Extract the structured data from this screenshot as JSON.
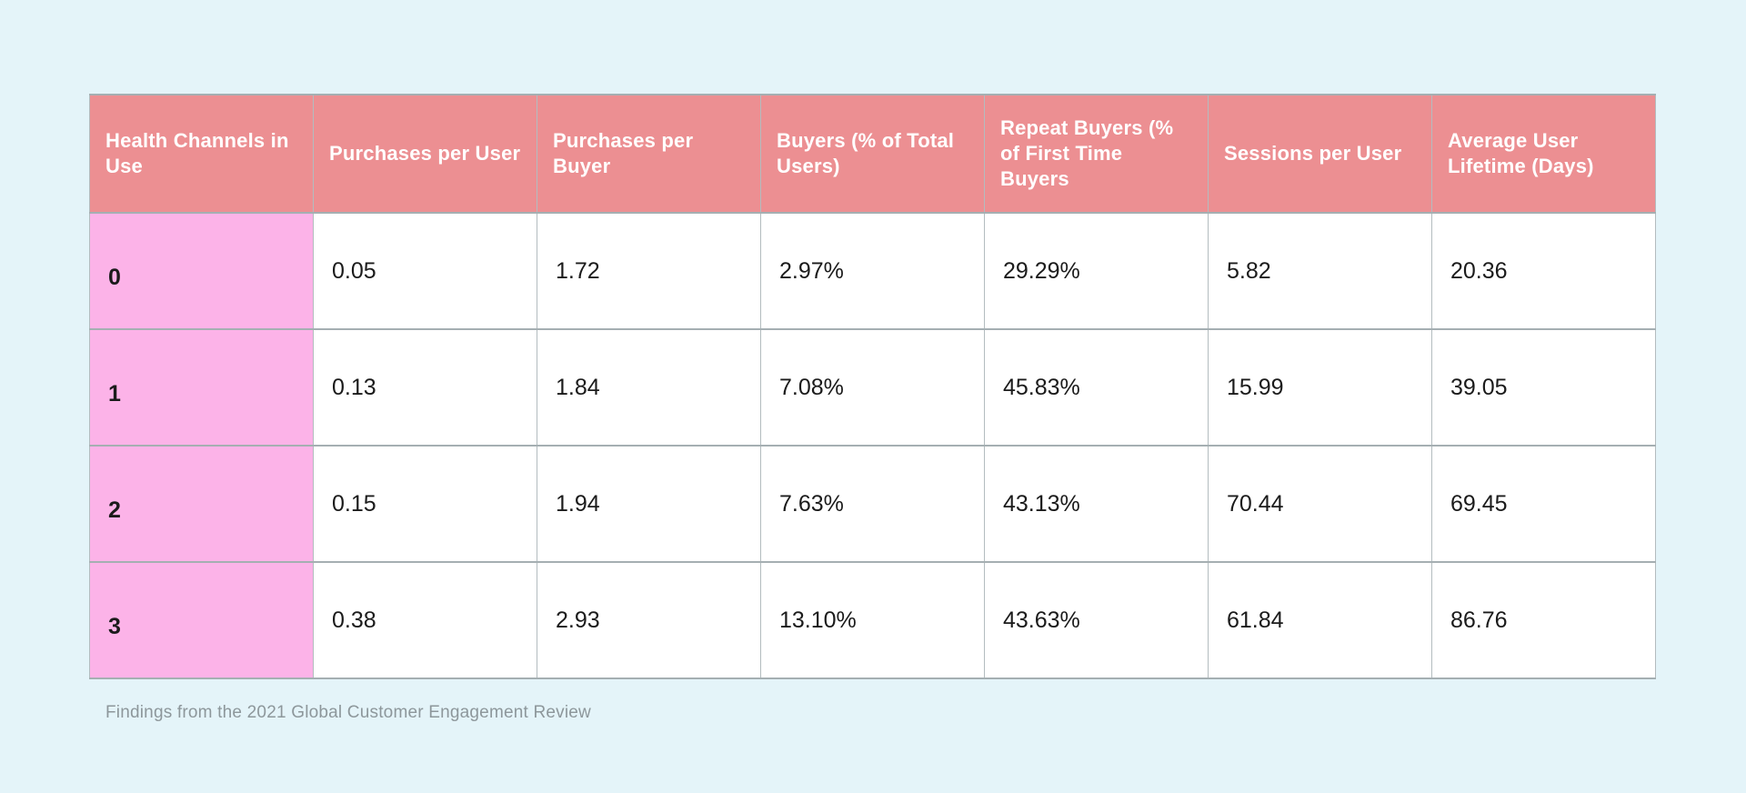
{
  "page": {
    "caption": "Findings from the 2021 Global Customer Engagement Review"
  },
  "table": {
    "columns": [
      "Health Channels in Use",
      "Purchases per User",
      "Purchases per Buyer",
      "Buyers (% of Total Users)",
      "Repeat Buyers (% of First Time Buyers",
      "Sessions per User",
      "Average User Lifetime (Days)"
    ],
    "rows": [
      {
        "label": "0",
        "values": [
          "0.05",
          "1.72",
          "2.97%",
          "29.29%",
          "5.82",
          "20.36"
        ]
      },
      {
        "label": "1",
        "values": [
          "0.13",
          "1.84",
          "7.08%",
          "45.83%",
          "15.99",
          "39.05"
        ]
      },
      {
        "label": "2",
        "values": [
          "0.15",
          "1.94",
          "7.63%",
          "43.13%",
          "70.44",
          "69.45"
        ]
      },
      {
        "label": "3",
        "values": [
          "0.38",
          "2.93",
          "13.10%",
          "43.63%",
          "61.84",
          "86.76"
        ]
      }
    ],
    "colors": {
      "page_bg": "#e4f4f9",
      "header_bg": "#ec8f92",
      "header_text": "#ffffff",
      "row_label_bg": "#fcb3e8",
      "cell_bg": "#ffffff",
      "cell_text": "#1b1b1b",
      "border": "#b3bcbf",
      "border_strong": "#a5afb2",
      "caption_text": "#8d979b"
    }
  },
  "chart_data": {
    "type": "table",
    "title": "",
    "caption": "Findings from the 2021 Global Customer Engagement Review",
    "columns": [
      "Health Channels in Use",
      "Purchases per User",
      "Purchases per Buyer",
      "Buyers (% of Total Users)",
      "Repeat Buyers (% of First Time Buyers",
      "Sessions per User",
      "Average User Lifetime (Days)"
    ],
    "rows": [
      [
        "0",
        "0.05",
        "1.72",
        "2.97%",
        "29.29%",
        "5.82",
        "20.36"
      ],
      [
        "1",
        "0.13",
        "1.84",
        "7.08%",
        "45.83%",
        "15.99",
        "39.05"
      ],
      [
        "2",
        "0.15",
        "1.94",
        "7.63%",
        "43.13%",
        "70.44",
        "69.45"
      ],
      [
        "3",
        "0.38",
        "2.93",
        "13.10%",
        "43.63%",
        "61.84",
        "86.76"
      ]
    ]
  }
}
